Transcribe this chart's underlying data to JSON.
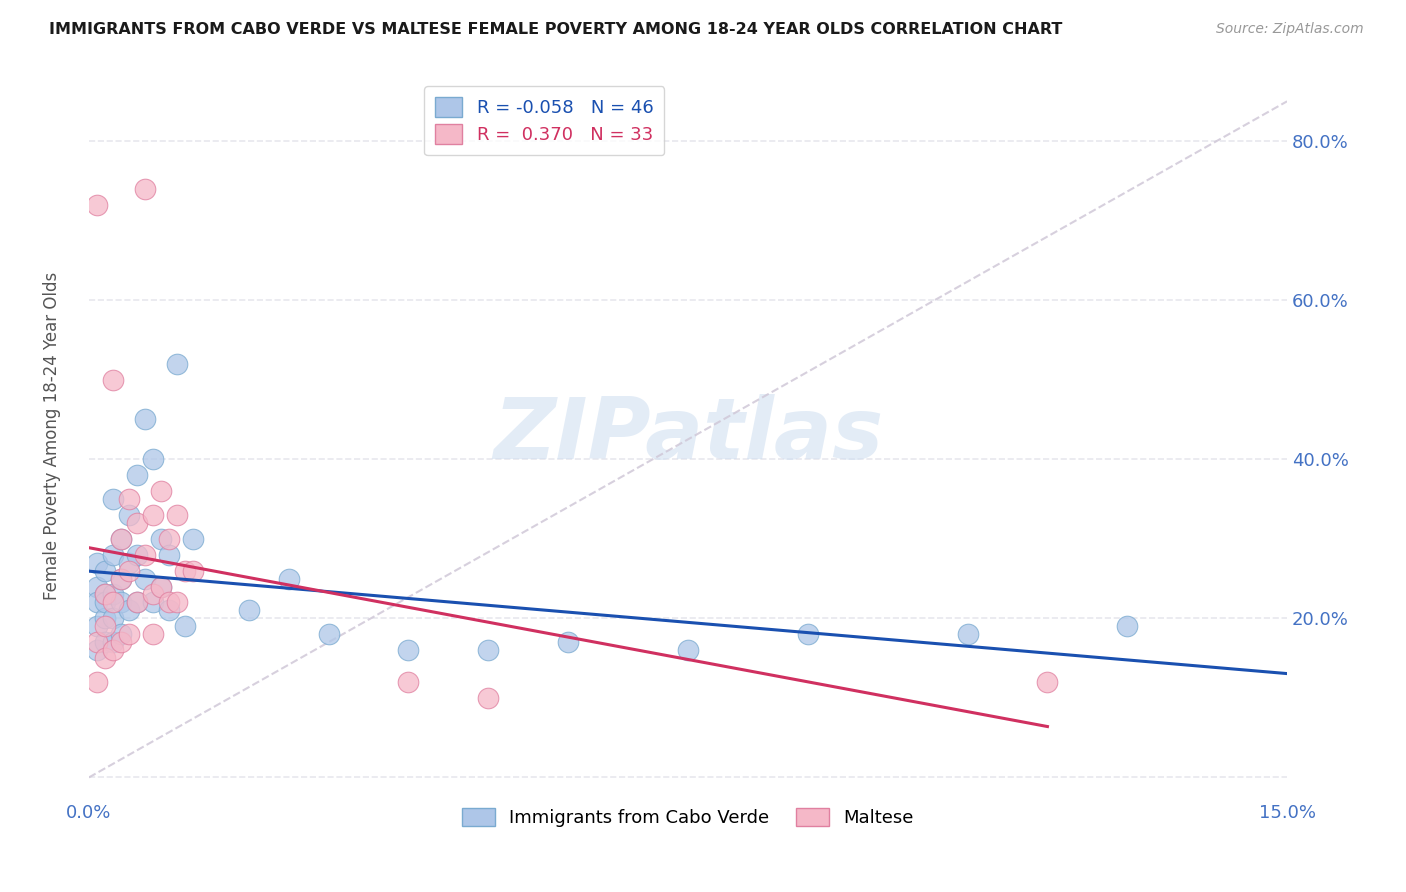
{
  "title": "IMMIGRANTS FROM CABO VERDE VS MALTESE FEMALE POVERTY AMONG 18-24 YEAR OLDS CORRELATION CHART",
  "source": "Source: ZipAtlas.com",
  "yaxis_label": "Female Poverty Among 18-24 Year Olds",
  "xmin": 0.0,
  "xmax": 0.15,
  "ymin": -0.02,
  "ymax": 0.88,
  "cabo_verde_R": -0.058,
  "cabo_verde_N": 46,
  "maltese_R": 0.37,
  "maltese_N": 33,
  "cabo_verde_color": "#aec6e8",
  "cabo_verde_edge": "#7aaad0",
  "maltese_color": "#f5b8c8",
  "maltese_edge": "#e080a0",
  "cabo_verde_line_color": "#1a50b0",
  "maltese_line_color": "#d03060",
  "diag_line_color": "#d0c8d8",
  "watermark_text": "ZIPatlas",
  "watermark_color": "#ccddf0",
  "background_color": "#ffffff",
  "grid_color": "#e8e8ee",
  "title_color": "#1a1a1a",
  "source_color": "#999999",
  "axis_tick_color": "#4472c4",
  "ylabel_color": "#555555",
  "cabo_verde_x": [
    0.001,
    0.001,
    0.001,
    0.001,
    0.001,
    0.002,
    0.002,
    0.002,
    0.002,
    0.002,
    0.003,
    0.003,
    0.003,
    0.003,
    0.003,
    0.004,
    0.004,
    0.004,
    0.004,
    0.005,
    0.005,
    0.005,
    0.006,
    0.006,
    0.006,
    0.007,
    0.007,
    0.008,
    0.008,
    0.009,
    0.009,
    0.01,
    0.01,
    0.011,
    0.012,
    0.013,
    0.02,
    0.025,
    0.03,
    0.04,
    0.05,
    0.06,
    0.075,
    0.09,
    0.11,
    0.13
  ],
  "cabo_verde_y": [
    0.24,
    0.27,
    0.22,
    0.19,
    0.16,
    0.26,
    0.23,
    0.2,
    0.17,
    0.22,
    0.35,
    0.28,
    0.23,
    0.2,
    0.17,
    0.3,
    0.25,
    0.22,
    0.18,
    0.33,
    0.27,
    0.21,
    0.38,
    0.28,
    0.22,
    0.45,
    0.25,
    0.4,
    0.22,
    0.3,
    0.24,
    0.28,
    0.21,
    0.52,
    0.19,
    0.3,
    0.21,
    0.25,
    0.18,
    0.16,
    0.16,
    0.17,
    0.16,
    0.18,
    0.18,
    0.19
  ],
  "maltese_x": [
    0.001,
    0.001,
    0.001,
    0.002,
    0.002,
    0.002,
    0.003,
    0.003,
    0.003,
    0.004,
    0.004,
    0.004,
    0.005,
    0.005,
    0.005,
    0.006,
    0.006,
    0.007,
    0.007,
    0.008,
    0.008,
    0.008,
    0.009,
    0.009,
    0.01,
    0.01,
    0.011,
    0.011,
    0.012,
    0.013,
    0.04,
    0.05,
    0.12
  ],
  "maltese_y": [
    0.72,
    0.17,
    0.12,
    0.23,
    0.19,
    0.15,
    0.5,
    0.22,
    0.16,
    0.3,
    0.25,
    0.17,
    0.35,
    0.26,
    0.18,
    0.32,
    0.22,
    0.74,
    0.28,
    0.33,
    0.23,
    0.18,
    0.36,
    0.24,
    0.3,
    0.22,
    0.33,
    0.22,
    0.26,
    0.26,
    0.12,
    0.1,
    0.12
  ]
}
